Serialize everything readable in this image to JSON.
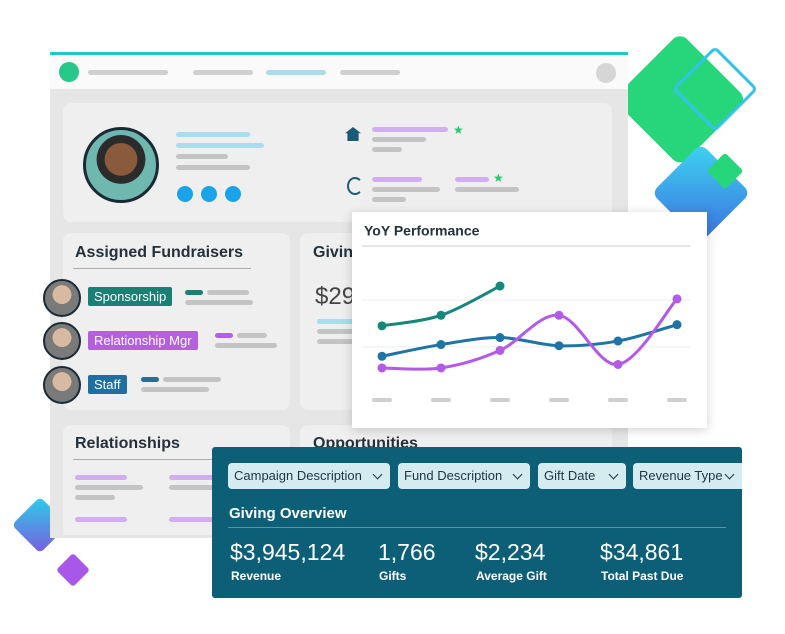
{
  "profile": {
    "card_title": null
  },
  "fundraisers": {
    "title": "Assigned Fundraisers",
    "roles": [
      "Sponsorship",
      "Relationship Mgr",
      "Staff"
    ]
  },
  "giving_card": {
    "title": "Givin",
    "amount": "$29"
  },
  "relationships": {
    "title": "Relationships"
  },
  "opportunities": {
    "title": "Opportunities"
  },
  "chart_data": {
    "type": "line",
    "title": "YoY Performance",
    "categories": [
      null,
      null,
      null,
      null,
      null,
      null
    ],
    "ylim": [
      0,
      100
    ],
    "series": [
      {
        "color": "#17877b",
        "values": [
          48,
          57,
          82,
          null,
          null,
          null
        ]
      },
      {
        "color": "#1f74a6",
        "values": [
          22,
          32,
          38,
          31,
          35,
          49
        ]
      },
      {
        "color": "#b25be6",
        "values": [
          12,
          12,
          27,
          57,
          15,
          71
        ]
      }
    ]
  },
  "overview": {
    "filters": [
      "Campaign Description",
      "Fund Description",
      "Gift Date",
      "Revenue Type"
    ],
    "title": "Giving Overview",
    "stats": [
      {
        "value": "$3,945,124",
        "label": "Revenue"
      },
      {
        "value": "1,766",
        "label": "Gifts"
      },
      {
        "value": "$2,234",
        "label": "Average Gift"
      },
      {
        "value": "$34,861",
        "label": "Total Past Due"
      }
    ]
  }
}
